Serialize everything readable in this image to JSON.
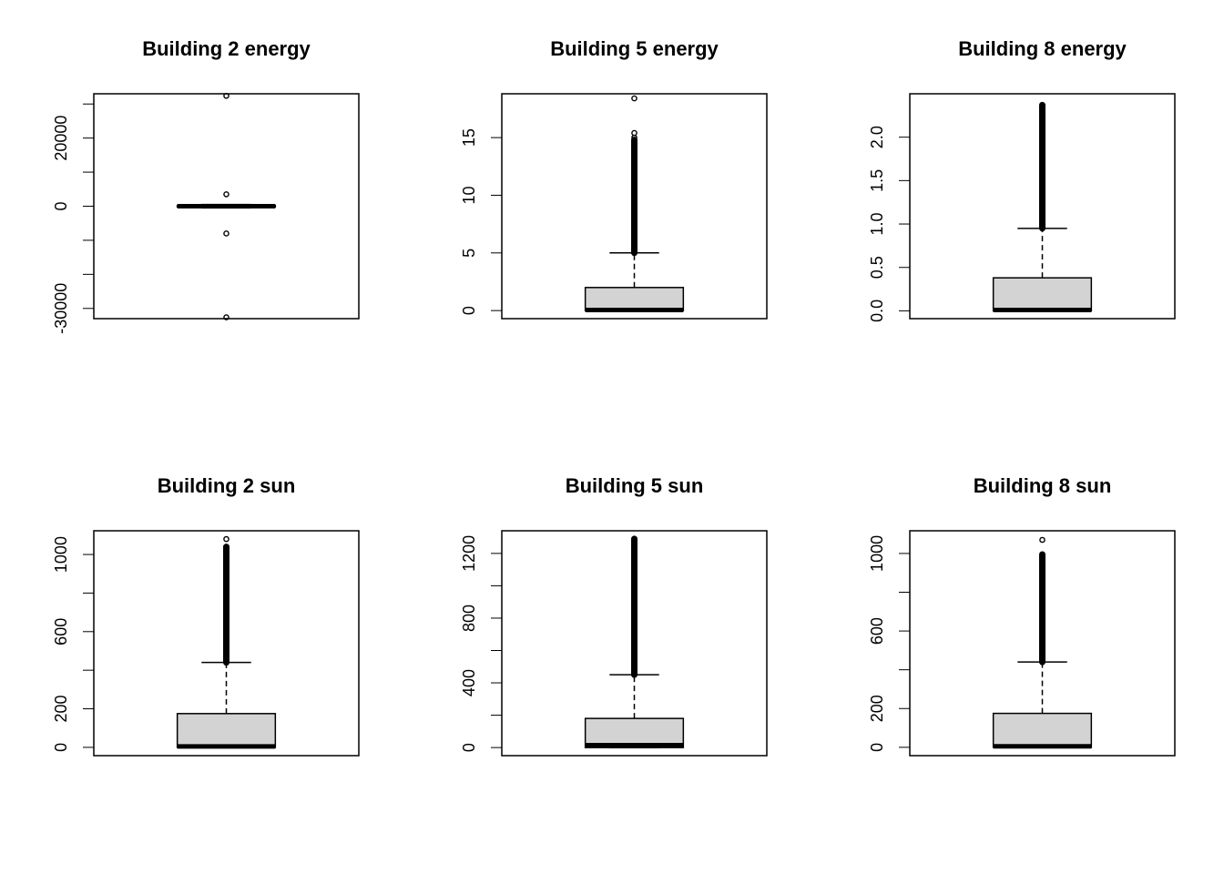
{
  "chart_data": [
    {
      "type": "boxplot",
      "title": "Building 2 energy",
      "ylim": [
        -33000,
        33000
      ],
      "yticks": [
        -30000,
        -20000,
        -10000,
        0,
        10000,
        20000,
        30000
      ],
      "ytick_labels": [
        "-30000",
        "",
        "",
        "0",
        "",
        "20000",
        ""
      ],
      "box": {
        "q1": -200,
        "median": 0,
        "q3": 200,
        "whisker_low": -500,
        "whisker_high": 500
      },
      "outliers_dense": [],
      "outliers": [
        32400,
        3500,
        -8000,
        -32600
      ]
    },
    {
      "type": "boxplot",
      "title": "Building 5 energy",
      "ylim": [
        -0.7,
        18.8
      ],
      "yticks": [
        0,
        5,
        10,
        15
      ],
      "ytick_labels": [
        "0",
        "5",
        "10",
        "15"
      ],
      "box": {
        "q1": 0,
        "median": 0.05,
        "q3": 2.0,
        "whisker_low": 0,
        "whisker_high": 5.0
      },
      "outliers_dense": [
        [
          5.0,
          14.8
        ]
      ],
      "outliers": [
        15.0,
        15.4,
        18.4
      ]
    },
    {
      "type": "boxplot",
      "title": "Building 8 energy",
      "ylim": [
        -0.09,
        2.5
      ],
      "yticks": [
        0.0,
        0.5,
        1.0,
        1.5,
        2.0
      ],
      "ytick_labels": [
        "0.0",
        "0.5",
        "1.0",
        "1.5",
        "2.0"
      ],
      "box": {
        "q1": 0,
        "median": 0.01,
        "q3": 0.38,
        "whisker_low": 0,
        "whisker_high": 0.95
      },
      "outliers_dense": [
        [
          0.95,
          2.37
        ]
      ],
      "outliers": []
    },
    {
      "type": "boxplot",
      "title": "Building 2 sun",
      "ylim": [
        -43,
        1123
      ],
      "yticks": [
        0,
        200,
        400,
        600,
        800,
        1000
      ],
      "ytick_labels": [
        "0",
        "200",
        "",
        "600",
        "",
        "1000"
      ],
      "box": {
        "q1": 0,
        "median": 5,
        "q3": 175,
        "whisker_low": 0,
        "whisker_high": 440
      },
      "outliers_dense": [
        [
          440,
          1040
        ]
      ],
      "outliers": [
        1080
      ]
    },
    {
      "type": "boxplot",
      "title": "Building 5 sun",
      "ylim": [
        -50,
        1340
      ],
      "yticks": [
        0,
        200,
        400,
        600,
        800,
        1000,
        1200
      ],
      "ytick_labels": [
        "0",
        "",
        "400",
        "",
        "800",
        "",
        "1200"
      ],
      "box": {
        "q1": 0,
        "median": 15,
        "q3": 180,
        "whisker_low": 0,
        "whisker_high": 450
      },
      "outliers_dense": [
        [
          450,
          1290
        ]
      ],
      "outliers": []
    },
    {
      "type": "boxplot",
      "title": "Building 8 sun",
      "ylim": [
        -43,
        1117
      ],
      "yticks": [
        0,
        200,
        400,
        600,
        800,
        1000
      ],
      "ytick_labels": [
        "0",
        "200",
        "",
        "600",
        "",
        "1000"
      ],
      "box": {
        "q1": 0,
        "median": 5,
        "q3": 175,
        "whisker_low": 0,
        "whisker_high": 440
      },
      "outliers_dense": [
        [
          440,
          995
        ]
      ],
      "outliers": [
        1070
      ]
    }
  ]
}
